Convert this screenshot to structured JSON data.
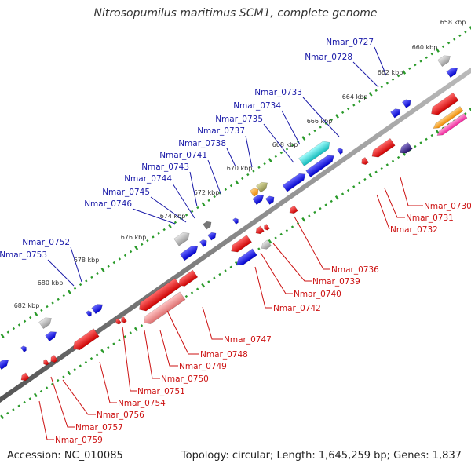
{
  "title": "Nitrosopumilus maritimus SCM1, complete genome",
  "accession_text": "Accession: NC_010085",
  "summary_text": "Topology: circular; Length: 1,645,259 bp; Genes: 1,837",
  "kbp_ticks": [
    "658 kbp",
    "660 kbp",
    "662 kbp",
    "664 kbp",
    "666 kbp",
    "668 kbp",
    "670 kbp",
    "672 kbp",
    "674 kbp",
    "676 kbp",
    "678 kbp",
    "680 kbp",
    "682 kbp"
  ],
  "forward_labels": [
    "Nmar_0727",
    "Nmar_0728",
    "Nmar_0733",
    "Nmar_0734",
    "Nmar_0735",
    "Nmar_0737",
    "Nmar_0738",
    "Nmar_0741",
    "Nmar_0743",
    "Nmar_0744",
    "Nmar_0745",
    "Nmar_0746",
    "Nmar_0752",
    "Nmar_0753"
  ],
  "reverse_labels": [
    "Nmar_0730",
    "Nmar_0731",
    "Nmar_0732",
    "Nmar_0736",
    "Nmar_0739",
    "Nmar_0740",
    "Nmar_0742",
    "Nmar_0747",
    "Nmar_0748",
    "Nmar_0749",
    "Nmar_0750",
    "Nmar_0751",
    "Nmar_0754",
    "Nmar_0756",
    "Nmar_0757",
    "Nmar_0759"
  ],
  "colors": {
    "forward_gene": "#1111ee",
    "reverse_gene": "#ee1111",
    "forward_label": "#1a1aa8",
    "reverse_label": "#cc1111",
    "backbone": "#777777",
    "tick_dots": "#2a9a2a",
    "gray_gene": "#aaaaaa",
    "cyan_gene": "#22dddd",
    "orange_gene": "#ff9900",
    "olive_gene": "#aaaa66",
    "pink_gene": "#ff44aa",
    "purple_gene": "#443388",
    "salmon_gene": "#ee8888"
  }
}
